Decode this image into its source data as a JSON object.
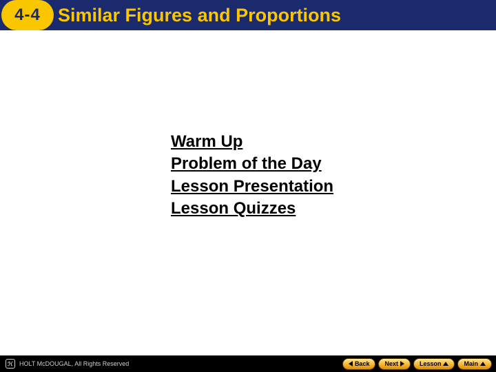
{
  "header": {
    "lesson_number": "4-4",
    "title": "Similar Figures and Proportions",
    "bar_bg": "#1a2a6c",
    "pill_bg": "#f9c600",
    "pill_text_color": "#1a2a6c",
    "title_color": "#f9c600"
  },
  "links": [
    {
      "label": "Warm Up"
    },
    {
      "label": "Problem of the Day"
    },
    {
      "label": "Lesson Presentation"
    },
    {
      "label": "Lesson Quizzes"
    }
  ],
  "footer": {
    "brand": "HOLT McDOUGAL,",
    "rights": "All Rights Reserved",
    "logo_glyph": "ℋ",
    "buttons": {
      "back": "Back",
      "next": "Next",
      "lesson": "Lesson",
      "main": "Main"
    },
    "button_bg_top": "#ffe68a",
    "button_bg_bottom": "#d98e00",
    "bar_bg": "#000000",
    "text_color": "#c9cfd6"
  }
}
